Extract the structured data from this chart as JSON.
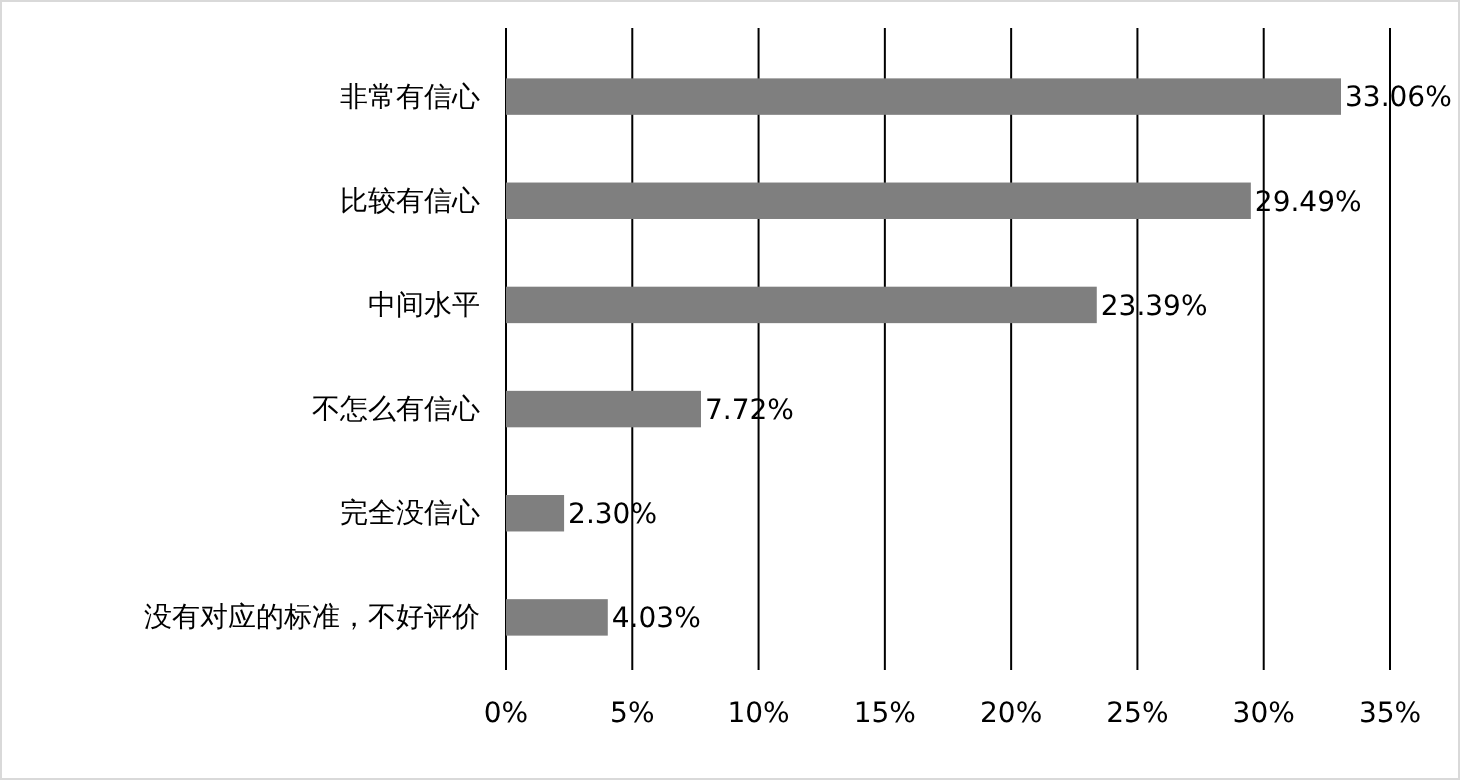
{
  "chart_data": {
    "type": "bar",
    "orientation": "horizontal",
    "categories": [
      "非常有信心",
      "比较有信心",
      "中间水平",
      "不怎么有信心",
      "完全没信心",
      "没有对应的标准，不好评价"
    ],
    "values": [
      33.06,
      29.49,
      23.39,
      7.72,
      2.3,
      4.03
    ],
    "value_labels": [
      "33.06%",
      "29.49%",
      "23.39%",
      "7.72%",
      "2.30%",
      "4.03%"
    ],
    "color": "#7f7f7f",
    "xlim": [
      0,
      35
    ],
    "xticks": [
      {
        "value": 0,
        "label": "0%"
      },
      {
        "value": 5,
        "label": "5%"
      },
      {
        "value": 10,
        "label": "10%"
      },
      {
        "value": 15,
        "label": "15%"
      },
      {
        "value": 20,
        "label": "20%"
      },
      {
        "value": 25,
        "label": "25%"
      },
      {
        "value": 30,
        "label": "30%"
      },
      {
        "value": 35,
        "label": "35%"
      }
    ],
    "grid": "x"
  }
}
